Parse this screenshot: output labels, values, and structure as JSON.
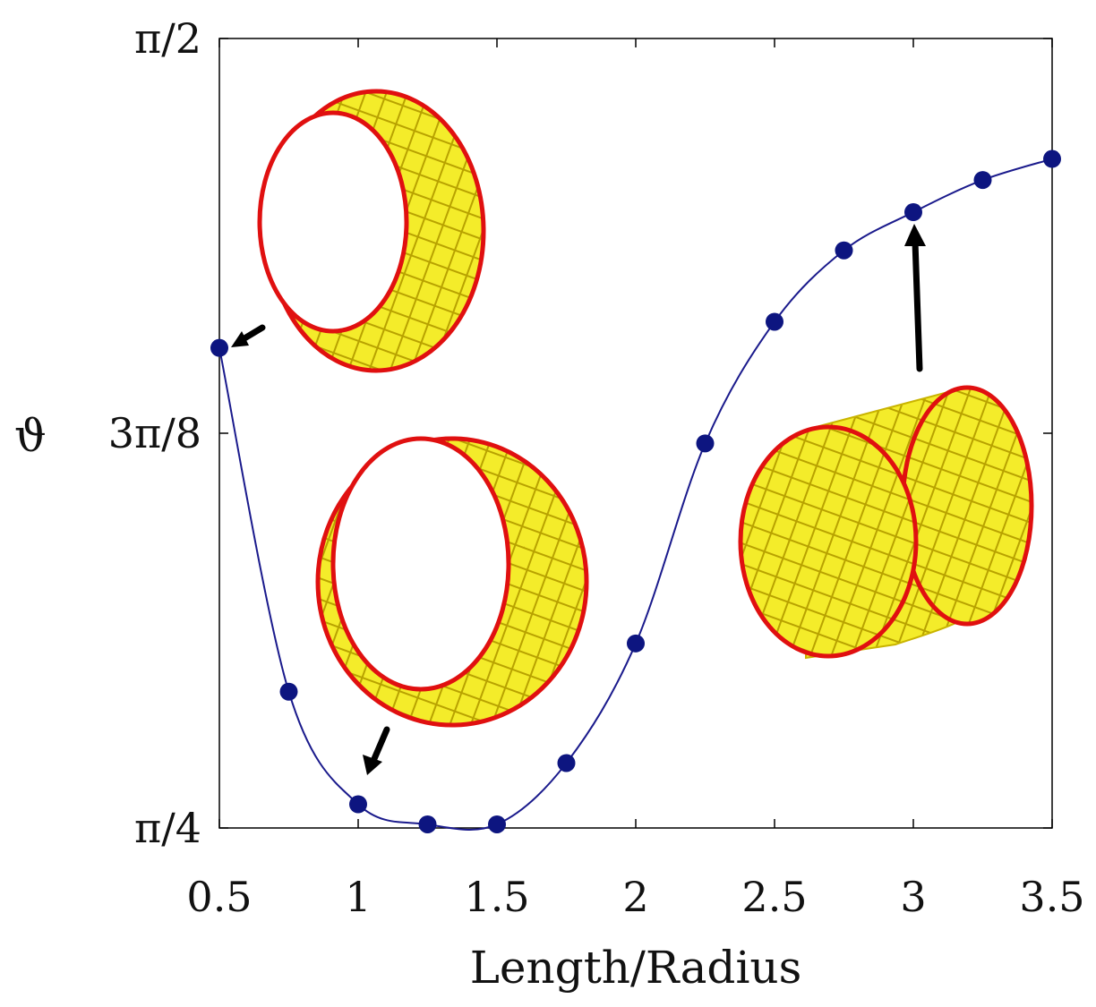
{
  "chart_data": {
    "type": "line",
    "title": "",
    "xlabel": "Length/Radius",
    "ylabel": "ϑ",
    "xlim": [
      0.5,
      3.5
    ],
    "ylim": [
      0.7853981634,
      1.5707963268
    ],
    "xticks": [
      {
        "value": 0.5,
        "label": "0.5"
      },
      {
        "value": 1,
        "label": "1"
      },
      {
        "value": 1.5,
        "label": "1.5"
      },
      {
        "value": 2,
        "label": "2"
      },
      {
        "value": 2.5,
        "label": "2.5"
      },
      {
        "value": 3,
        "label": "3"
      },
      {
        "value": 3.5,
        "label": "3.5"
      }
    ],
    "yticks": [
      {
        "value": 0.7853981634,
        "label": "π/4"
      },
      {
        "value": 1.1780972451,
        "label": "3π/8"
      },
      {
        "value": 1.5707963268,
        "label": "π/2"
      }
    ],
    "grid": false,
    "legend": "none",
    "series": [
      {
        "x": [
          0.5,
          0.75,
          1.0,
          1.25,
          1.5,
          1.75,
          2.0,
          2.25,
          2.5,
          2.75,
          3.0,
          3.25,
          3.5
        ],
        "y": [
          1.263,
          0.921,
          0.809,
          0.789,
          0.789,
          0.85,
          0.969,
          1.168,
          1.289,
          1.36,
          1.398,
          1.43,
          1.451
        ],
        "color": "#0d1580"
      }
    ],
    "annotations": [
      {
        "type": "tube-image",
        "points_to_x": 0.5,
        "shape": "short ring"
      },
      {
        "type": "tube-image",
        "points_to_x": 1.0,
        "shape": "short tube"
      },
      {
        "type": "tube-image",
        "points_to_x": 3.0,
        "shape": "long tube"
      }
    ]
  }
}
